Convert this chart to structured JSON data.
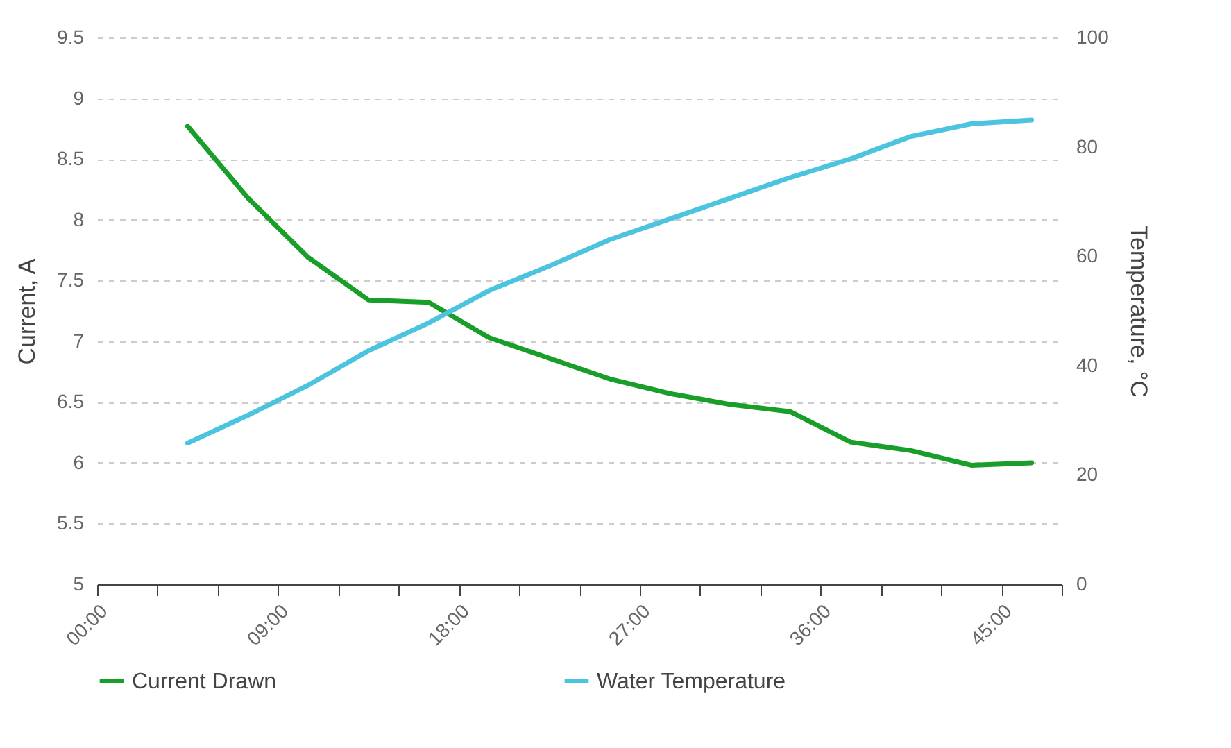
{
  "chart_data": {
    "type": "line",
    "xlabel": null,
    "ylabel": "Current, A",
    "y2label": "Temperature, °C",
    "x": [
      4.5,
      7.5,
      10.5,
      13.5,
      16.5,
      19.5,
      22.5,
      25.5,
      28.5,
      31.5,
      34.5,
      37.5,
      40.5,
      43.5,
      46.5
    ],
    "series": [
      {
        "name": "Current Drawn",
        "color": "#1a9e2a",
        "values": [
          8.77,
          8.18,
          7.69,
          7.34,
          7.32,
          7.03,
          6.86,
          6.69,
          6.57,
          6.48,
          6.42,
          6.17,
          6.1,
          5.98,
          6.0
        ]
      },
      {
        "name": "Water Temperature",
        "color": "#4cc4e0",
        "axis": "y2",
        "values": [
          25.8,
          30.9,
          36.4,
          42.7,
          47.8,
          53.7,
          58.2,
          63.0,
          66.8,
          70.6,
          74.4,
          77.8,
          81.9,
          84.2,
          84.9
        ]
      }
    ],
    "xlim": [
      0,
      48
    ],
    "xticks": [
      {
        "value": 0,
        "label": "00:00"
      },
      {
        "value": 3,
        "label": null
      },
      {
        "value": 6,
        "label": null
      },
      {
        "value": 9,
        "label": "09:00"
      },
      {
        "value": 12,
        "label": null
      },
      {
        "value": 15,
        "label": null
      },
      {
        "value": 18,
        "label": "18:00"
      },
      {
        "value": 21,
        "label": null
      },
      {
        "value": 24,
        "label": null
      },
      {
        "value": 27,
        "label": "27:00"
      },
      {
        "value": 30,
        "label": null
      },
      {
        "value": 33,
        "label": null
      },
      {
        "value": 36,
        "label": "36:00"
      },
      {
        "value": 39,
        "label": null
      },
      {
        "value": 42,
        "label": null
      },
      {
        "value": 45,
        "label": "45:00"
      },
      {
        "value": 48,
        "label": null
      }
    ],
    "ylim": [
      5,
      9.5
    ],
    "yticks": [
      5,
      5.5,
      6,
      6.5,
      7,
      7.5,
      8,
      8.5,
      9,
      9.5
    ],
    "y2lim": [
      0,
      100
    ],
    "y2ticks": [
      0,
      20,
      40,
      60,
      80,
      100
    ],
    "grid": "y",
    "legend": "bottom",
    "marker": "none",
    "line_style": "solid"
  }
}
